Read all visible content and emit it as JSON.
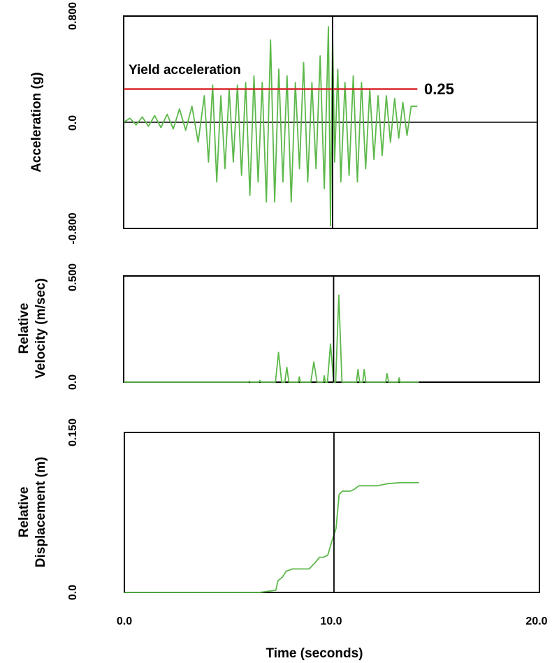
{
  "figure": {
    "xlabel": "Time (seconds)",
    "x_ticks": [
      "0.0",
      "10.0",
      "20.0"
    ]
  },
  "colors": {
    "series": "#5cb84a",
    "yield": "#d9262c",
    "frame": "#000000"
  },
  "chart_data": [
    {
      "type": "line",
      "ylabel": "Acceleration (g)",
      "y_ticks": [
        "0.800",
        "0.0",
        "-0.800"
      ],
      "xlim": [
        0,
        20
      ],
      "ylim": [
        -0.8,
        0.8
      ],
      "grid": false,
      "reference_line_x": 10.1,
      "annotations": {
        "yield_label": "Yield acceleration",
        "yield_value_label": "0.25",
        "yield_value": 0.25,
        "yield_x_end": 14.2
      },
      "series": [
        {
          "x": [
            0.0,
            0.3,
            0.6,
            0.9,
            1.2,
            1.5,
            1.8,
            2.1,
            2.4,
            2.7,
            3.0,
            3.3,
            3.6,
            3.9,
            4.1,
            4.3,
            4.5,
            4.7,
            4.9,
            5.1,
            5.3,
            5.5,
            5.7,
            5.9,
            6.1,
            6.3,
            6.5,
            6.7,
            6.9,
            7.1,
            7.3,
            7.5,
            7.7,
            7.9,
            8.1,
            8.3,
            8.5,
            8.7,
            8.9,
            9.1,
            9.3,
            9.5,
            9.7,
            9.9,
            10.0,
            10.1,
            10.2,
            10.35,
            10.5,
            10.7,
            10.9,
            11.1,
            11.3,
            11.5,
            11.7,
            11.9,
            12.1,
            12.3,
            12.5,
            12.7,
            12.9,
            13.1,
            13.3,
            13.5,
            13.7,
            13.9,
            14.2
          ],
          "y": [
            0.0,
            0.03,
            -0.02,
            0.04,
            -0.03,
            0.05,
            -0.04,
            0.06,
            -0.05,
            0.1,
            -0.06,
            0.12,
            -0.15,
            0.2,
            -0.3,
            0.28,
            -0.45,
            0.2,
            -0.35,
            0.25,
            -0.3,
            0.28,
            -0.4,
            0.3,
            -0.55,
            0.35,
            -0.45,
            0.3,
            -0.6,
            0.62,
            -0.6,
            0.4,
            -0.45,
            0.35,
            -0.6,
            0.3,
            -0.35,
            0.45,
            -0.45,
            0.3,
            -0.35,
            0.5,
            -0.5,
            0.72,
            -0.78,
            0.68,
            -0.3,
            0.4,
            -0.45,
            0.3,
            -0.4,
            0.35,
            -0.45,
            0.3,
            -0.35,
            0.25,
            -0.28,
            0.2,
            -0.25,
            0.2,
            -0.15,
            0.18,
            -0.12,
            0.15,
            -0.1,
            0.12,
            0.12
          ]
        }
      ]
    },
    {
      "type": "line",
      "ylabel_lines": [
        "Relative",
        "Velocity (m/sec)"
      ],
      "y_ticks": [
        "0.500",
        "0.0"
      ],
      "xlim": [
        0,
        20
      ],
      "ylim": [
        0,
        0.5
      ],
      "grid": false,
      "reference_line_x": 10.1,
      "series": [
        {
          "x": [
            0.0,
            5.5,
            6.0,
            6.05,
            6.1,
            6.5,
            6.55,
            6.6,
            7.3,
            7.45,
            7.6,
            7.75,
            7.85,
            7.95,
            8.4,
            8.45,
            8.5,
            9.0,
            9.15,
            9.3,
            9.6,
            9.65,
            9.7,
            9.8,
            9.95,
            10.1,
            10.2,
            10.35,
            10.5,
            10.6,
            10.7,
            11.2,
            11.27,
            11.35,
            11.5,
            11.57,
            11.65,
            12.6,
            12.67,
            12.75,
            13.2,
            13.25,
            13.3,
            14.2
          ],
          "y": [
            0.0,
            0.0,
            0.0,
            0.005,
            0.0,
            0.0,
            0.008,
            0.0,
            0.0,
            0.14,
            0.0,
            0.0,
            0.07,
            0.0,
            0.0,
            0.025,
            0.0,
            0.0,
            0.095,
            0.0,
            0.0,
            0.03,
            0.0,
            0.0,
            0.18,
            0.0,
            0.0,
            0.41,
            0.0,
            0.0,
            0.0,
            0.0,
            0.06,
            0.0,
            0.0,
            0.06,
            0.0,
            0.0,
            0.04,
            0.0,
            0.0,
            0.02,
            0.0,
            0.0
          ]
        }
      ]
    },
    {
      "type": "line",
      "ylabel_lines": [
        "Relative",
        "Displacement (m)"
      ],
      "y_ticks": [
        "0.150",
        "0.0"
      ],
      "xlim": [
        0,
        20
      ],
      "ylim": [
        0,
        0.15
      ],
      "grid": false,
      "reference_line_x": 10.1,
      "series": [
        {
          "x": [
            0.0,
            6.5,
            7.3,
            7.4,
            7.6,
            7.8,
            8.1,
            8.5,
            8.9,
            9.2,
            9.4,
            9.6,
            9.8,
            10.0,
            10.2,
            10.35,
            10.5,
            10.9,
            11.1,
            11.3,
            12.2,
            12.7,
            13.3,
            14.2
          ],
          "y": [
            0.0,
            0.0,
            0.002,
            0.011,
            0.014,
            0.02,
            0.022,
            0.022,
            0.022,
            0.028,
            0.033,
            0.033,
            0.035,
            0.048,
            0.06,
            0.092,
            0.095,
            0.095,
            0.097,
            0.1,
            0.1,
            0.102,
            0.103,
            0.103
          ]
        }
      ]
    }
  ]
}
